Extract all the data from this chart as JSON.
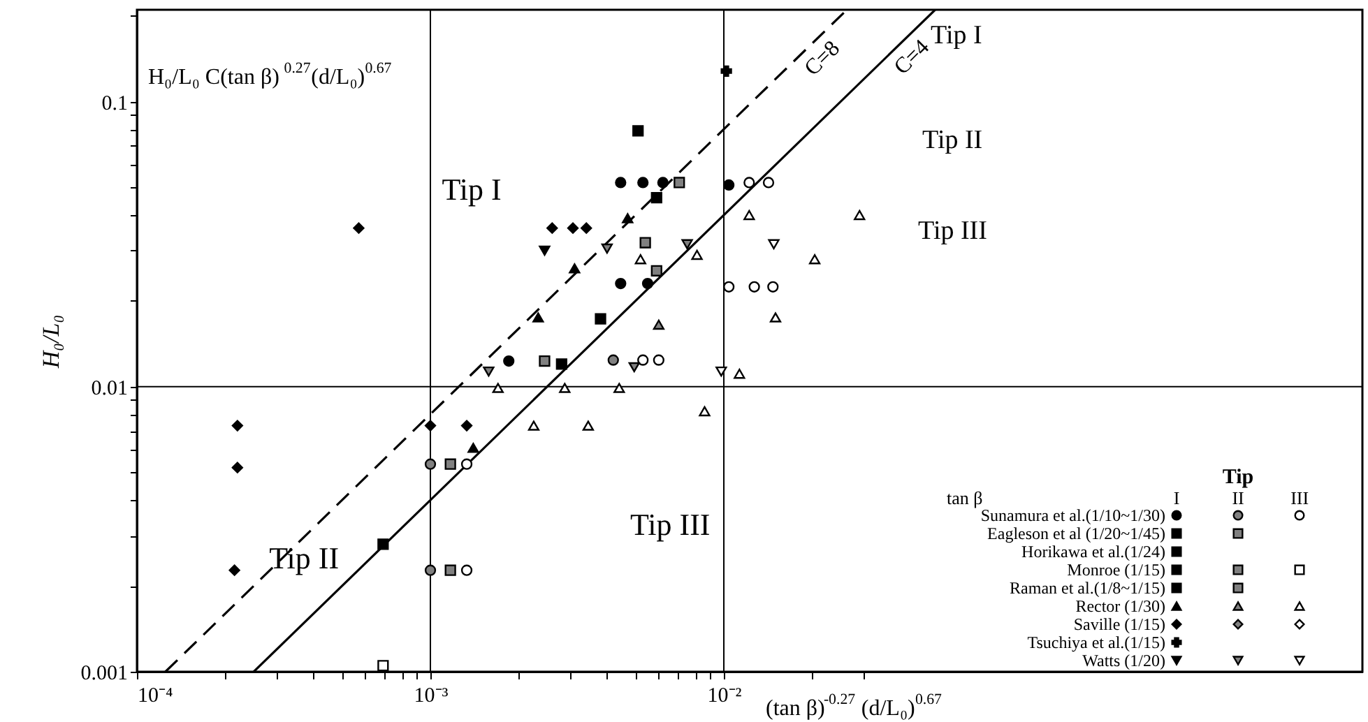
{
  "chart_data": {
    "type": "scatter",
    "xlabel": "(tan β)$^{-0.27}$ (d/L₀)$^{0.67}$",
    "ylabel": "H₀/L₀",
    "legend_title": "Tip",
    "legend": "bottom right",
    "log": "xy",
    "xlim": [
      0.0001,
      1.5
    ],
    "ylim": [
      0.001,
      0.21
    ],
    "xticks": [
      {
        "value": 0.0001,
        "label": "10⁻⁴"
      },
      {
        "value": 0.0002,
        "label": null
      },
      {
        "value": 0.0003,
        "label": null
      },
      {
        "value": 0.0004,
        "label": null
      },
      {
        "value": 0.0005,
        "label": null
      },
      {
        "value": 0.0006,
        "label": null
      },
      {
        "value": 0.0007,
        "label": null
      },
      {
        "value": 0.0008,
        "label": null
      },
      {
        "value": 0.0009,
        "label": null
      },
      {
        "value": 0.001,
        "label": "10⁻³"
      },
      {
        "value": 0.002,
        "label": null
      },
      {
        "value": 0.003,
        "label": null
      },
      {
        "value": 0.004,
        "label": null
      },
      {
        "value": 0.005,
        "label": null
      },
      {
        "value": 0.006,
        "label": null
      },
      {
        "value": 0.007,
        "label": null
      },
      {
        "value": 0.008,
        "label": null
      },
      {
        "value": 0.009,
        "label": null
      },
      {
        "value": 0.01,
        "label": "10⁻²"
      },
      {
        "value": 0.02,
        "label": null
      },
      {
        "value": 0.03,
        "label": null
      }
    ],
    "yticks": [
      0.001,
      {
        "value": 0.002,
        "label": null
      },
      {
        "value": 0.003,
        "label": null
      },
      {
        "value": 0.004,
        "label": null
      },
      {
        "value": 0.005,
        "label": null
      },
      {
        "value": 0.006,
        "label": null
      },
      {
        "value": 0.007,
        "label": null
      },
      {
        "value": 0.008,
        "label": null
      },
      {
        "value": 0.009,
        "label": null
      },
      0.01,
      {
        "value": 0.02,
        "label": null
      },
      {
        "value": 0.03,
        "label": null
      },
      {
        "value": 0.04,
        "label": null
      },
      {
        "value": 0.05,
        "label": null
      },
      {
        "value": 0.06,
        "label": null
      },
      {
        "value": 0.07,
        "label": null
      },
      {
        "value": 0.08,
        "label": null
      },
      {
        "value": 0.09,
        "label": null
      },
      0.1,
      {
        "value": 0.2,
        "label": null
      }
    ],
    "ref_lines": [
      {
        "axis": "x",
        "value": 0.001
      },
      {
        "axis": "x",
        "value": 0.01
      },
      {
        "axis": "y",
        "value": 0.01
      }
    ],
    "annotations": [
      "H₀/L₀  C(tan β)$^{0.27}$(d/L₀)$^{0.67}$",
      "Tip I",
      "Tip II",
      "Tip III",
      "Tip I",
      "Tip II",
      "Tip III",
      "tan β",
      "I",
      "II",
      "III"
    ],
    "series": [
      {
        "type": "line",
        "name": "C=8",
        "color": "#000000",
        "line_style": "dashed",
        "x": [
          0.000125,
          0.026
        ],
        "values": [
          0.001,
          0.208
        ]
      },
      {
        "type": "line",
        "name": "C=4",
        "color": "#000000",
        "line_style": "solid",
        "x": [
          0.00025,
          0.0525
        ],
        "values": [
          0.001,
          0.21
        ]
      },
      {
        "name": "Sunamura et al.(1/10~1/30)",
        "marker": "circle",
        "color": "#000000",
        "x": [
          0.00445,
          0.0053,
          0.0062,
          0.0104,
          0.00445,
          0.0055,
          0.00185
        ],
        "values": [
          0.052,
          0.052,
          0.052,
          0.051,
          0.023,
          0.023,
          0.0123
        ]
      },
      {
        "marker": "circle",
        "color": "#808080",
        "x": [
          0.0042,
          0.001,
          0.001
        ],
        "values": [
          0.0124,
          0.00535,
          0.00227
        ]
      },
      {
        "marker": "circle",
        "color": "#ffffff",
        "x": [
          0.0122,
          0.0142,
          0.0104,
          0.0127,
          0.0147,
          0.0053,
          0.006,
          0.00133,
          0.00133
        ],
        "values": [
          0.052,
          0.052,
          0.0224,
          0.0224,
          0.0224,
          0.0124,
          0.0124,
          0.00535,
          0.00227
        ]
      },
      {
        "name": "Eagleson et al (1/20~1/45)",
        "marker": "square",
        "color": "#000000",
        "x": [
          0.0059
        ],
        "values": [
          0.046
        ]
      },
      {
        "marker": "square",
        "color": "#808080",
        "x": [
          0.00705,
          0.0054
        ],
        "values": [
          0.052,
          0.032
        ]
      },
      {
        "name": "Horikawa et al.(1/24)",
        "marker": "square",
        "color": "#000000",
        "x": [
          0.0051
        ],
        "values": [
          0.079
        ]
      },
      {
        "name": "Monroe (1/15)",
        "marker": "square",
        "color": "#000000",
        "x": [
          0.0038,
          0.00069
        ],
        "values": [
          0.0173,
          0.0028
        ]
      },
      {
        "marker": "square",
        "color": "#808080",
        "x": [
          0.00245,
          0.00117,
          0.00117
        ],
        "values": [
          0.0123,
          0.00535,
          0.00227
        ]
      },
      {
        "marker": "square",
        "color": "#ffffff",
        "x": [
          0.00069
        ],
        "values": [
          0.00105
        ]
      },
      {
        "name": "Raman et al.(1/8~1/15)",
        "marker": "square",
        "color": "#000000",
        "x": [
          0.0028
        ],
        "values": [
          0.012
        ]
      },
      {
        "marker": "square",
        "color": "#808080",
        "x": [
          0.0059
        ],
        "values": [
          0.0255
        ]
      },
      {
        "name": "Rector (1/30)",
        "marker": "triangle",
        "color": "#000000",
        "x": [
          0.0047,
          0.0031,
          0.00233,
          0.0014
        ],
        "values": [
          0.039,
          0.026,
          0.0175,
          0.0061
        ]
      },
      {
        "marker": "triangle",
        "color": "#808080",
        "x": [
          0.006
        ],
        "values": [
          0.0165
        ]
      },
      {
        "marker": "triangle",
        "color": "#ffffff",
        "x": [
          0.0017,
          0.00287,
          0.0044,
          0.0113,
          0.0086,
          0.00225,
          0.00345,
          0.0122,
          0.029,
          0.0204,
          0.015,
          0.0052,
          0.0081
        ],
        "values": [
          0.0099,
          0.0099,
          0.0099,
          0.0111,
          0.0082,
          0.0073,
          0.0073,
          0.04,
          0.04,
          0.028,
          0.0175,
          0.028,
          0.029
        ]
      },
      {
        "name": "Saville (1/15)",
        "marker": "diamond",
        "color": "#000000",
        "x": [
          0.00022,
          0.00022,
          0.000215,
          0.001,
          0.00133,
          0.00057,
          0.0026,
          0.00306,
          0.0034
        ],
        "values": [
          0.0073,
          0.0052,
          0.00227,
          0.0073,
          0.0073,
          0.036,
          0.036,
          0.036,
          0.036
        ]
      },
      {
        "marker": "diamond",
        "color": "#808080"
      },
      {
        "marker": "diamond",
        "color": "#ffffff"
      },
      {
        "name": "Tsuchiya et al.(1/15)",
        "marker": "cross",
        "color": "#000000",
        "x": [
          0.0102
        ],
        "values": [
          0.128
        ]
      },
      {
        "name": "Watts (1/20)",
        "marker": "triangle-down",
        "color": "#000000",
        "x": [
          0.00245
        ],
        "values": [
          0.03
        ]
      },
      {
        "marker": "triangle-down",
        "color": "#808080",
        "x": [
          0.004,
          0.0075,
          0.00158,
          0.00495
        ],
        "values": [
          0.0305,
          0.0316,
          0.0113,
          0.0117
        ]
      },
      {
        "marker": "triangle-down",
        "color": "#ffffff",
        "x": [
          0.0148,
          0.0098
        ],
        "values": [
          0.0316,
          0.0113
        ]
      }
    ]
  }
}
